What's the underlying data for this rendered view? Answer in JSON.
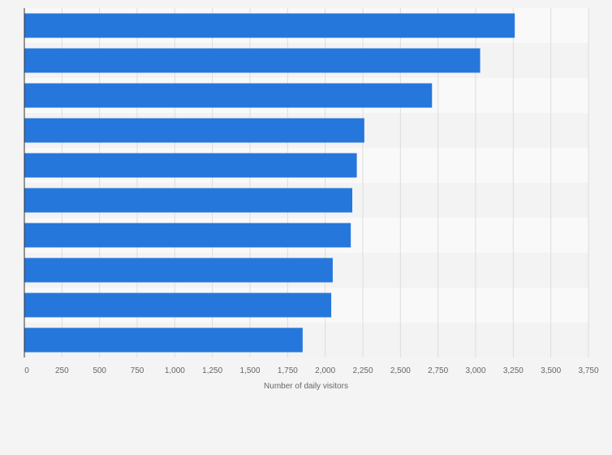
{
  "chart_data": {
    "type": "bar",
    "orientation": "horizontal",
    "title": "",
    "xlabel": "Number of daily visitors",
    "ylabel": "",
    "categories": [
      "",
      "",
      "",
      "",
      "",
      "",
      "",
      "",
      "",
      ""
    ],
    "values": [
      3260,
      3030,
      2710,
      2260,
      2210,
      2180,
      2170,
      2050,
      2040,
      1850
    ],
    "xlim": [
      0,
      3750
    ],
    "xticks": [
      0,
      250,
      500,
      750,
      1000,
      1250,
      1500,
      1750,
      2000,
      2250,
      2500,
      2750,
      3000,
      3250,
      3500,
      3750
    ],
    "xtick_labels": [
      "0",
      "250",
      "500",
      "750",
      "1,000",
      "1,250",
      "1,500",
      "1,750",
      "2,000",
      "2,250",
      "2,500",
      "2,750",
      "3,000",
      "3,250",
      "3,500",
      "3,750"
    ],
    "grid": true,
    "legend": "none",
    "colors": {
      "bar": "#2677dc",
      "background": "#f4f4f4",
      "band_light": "#f9f9f9",
      "band_dark": "#f3f3f3",
      "gridline": "#dddddd",
      "axis": "#333333",
      "text": "#666666"
    }
  }
}
